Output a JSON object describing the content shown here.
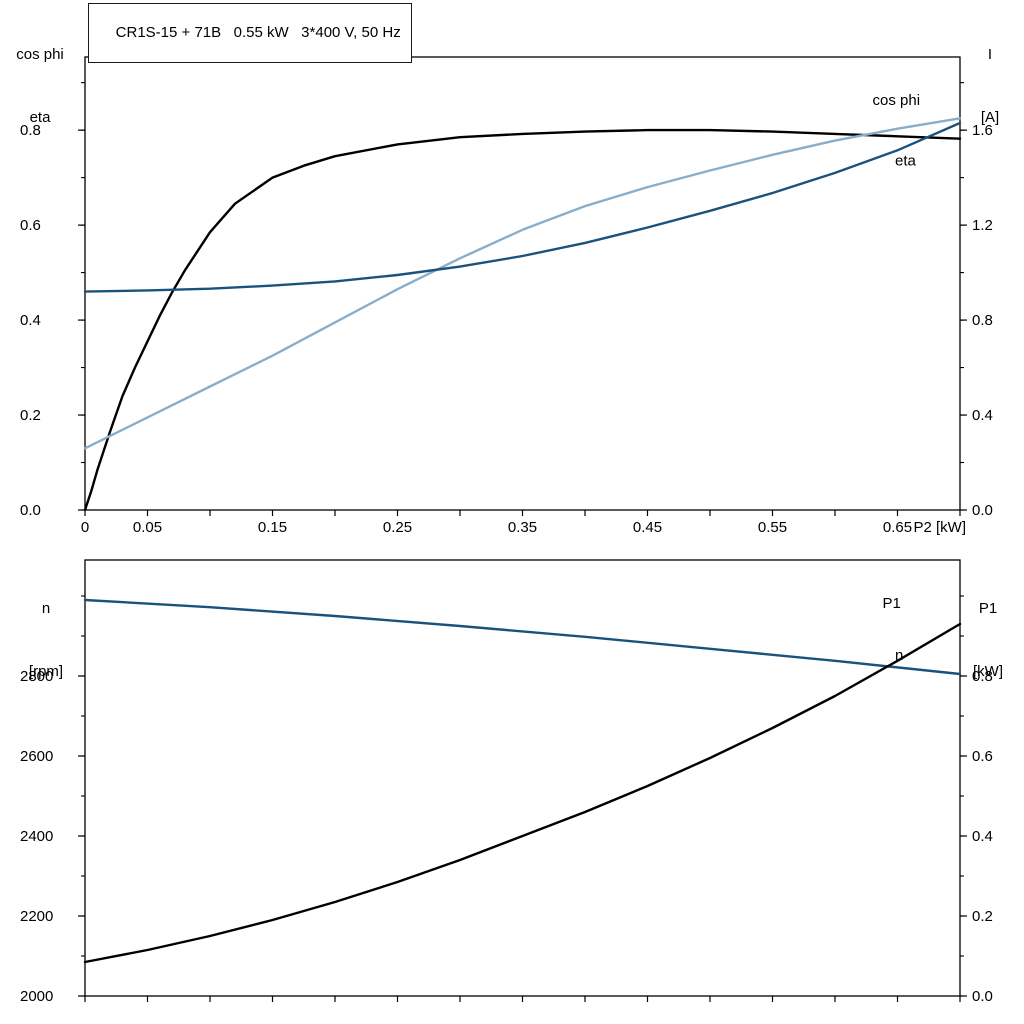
{
  "title_box": "CR1S-15 + 71B   0.55 kW   3*400 V, 50 Hz",
  "colors": {
    "black": "#000000",
    "dark_blue": "#1a527c",
    "light_blue": "#8aaec9",
    "axis": "#000000",
    "background": "#ffffff"
  },
  "chart_data": [
    {
      "type": "line",
      "title": "CR1S-15 + 71B   0.55 kW   3*400 V, 50 Hz",
      "y_left_title": [
        "cos phi",
        "eta"
      ],
      "y_right_title": [
        "I",
        "[A]"
      ],
      "x_title": "P2 [kW]",
      "xlim": [
        0,
        0.7
      ],
      "x_tick_step": 0.05,
      "x_tick_values": [
        0,
        0.05,
        0.15,
        0.25,
        0.35,
        0.45,
        0.55,
        0.65
      ],
      "x_tick_labels": [
        "0",
        "0.05",
        "0.15",
        "0.25",
        "0.35",
        "0.45",
        "0.55",
        "0.65"
      ],
      "ylim_left": [
        0,
        0.954
      ],
      "y_left_tick_values": [
        0.0,
        0.2,
        0.4,
        0.6,
        0.8
      ],
      "y_left_tick_labels": [
        "0.0",
        "0.2",
        "0.4",
        "0.6",
        "0.8"
      ],
      "y_left_minor_step": 0.1,
      "ylim_right": [
        0,
        1.908
      ],
      "y_right_tick_values": [
        0.0,
        0.4,
        0.8,
        1.2,
        1.6
      ],
      "y_right_tick_labels": [
        "0.0",
        "0.4",
        "0.8",
        "1.2",
        "1.6"
      ],
      "y_right_minor_step": 0.2,
      "grid": false,
      "series": [
        {
          "name": "eta",
          "color": "black",
          "axis": "left",
          "x": [
            0,
            0.005,
            0.01,
            0.02,
            0.03,
            0.04,
            0.05,
            0.06,
            0.07,
            0.08,
            0.09,
            0.1,
            0.12,
            0.15,
            0.175,
            0.2,
            0.25,
            0.3,
            0.35,
            0.4,
            0.45,
            0.5,
            0.55,
            0.6,
            0.65,
            0.7
          ],
          "y": [
            0,
            0.04,
            0.085,
            0.165,
            0.24,
            0.3,
            0.355,
            0.41,
            0.46,
            0.505,
            0.545,
            0.585,
            0.645,
            0.7,
            0.725,
            0.745,
            0.77,
            0.785,
            0.792,
            0.797,
            0.8,
            0.8,
            0.797,
            0.792,
            0.787,
            0.782
          ]
        },
        {
          "name": "cos phi",
          "color": "light_blue",
          "axis": "left",
          "x": [
            0,
            0.05,
            0.1,
            0.15,
            0.2,
            0.25,
            0.3,
            0.35,
            0.4,
            0.45,
            0.5,
            0.55,
            0.6,
            0.65,
            0.7
          ],
          "y": [
            0.13,
            0.195,
            0.26,
            0.325,
            0.395,
            0.465,
            0.53,
            0.59,
            0.64,
            0.68,
            0.715,
            0.748,
            0.778,
            0.803,
            0.825
          ]
        },
        {
          "name": "I",
          "color": "dark_blue",
          "axis": "right",
          "x": [
            0,
            0.05,
            0.1,
            0.15,
            0.2,
            0.25,
            0.3,
            0.35,
            0.4,
            0.45,
            0.5,
            0.55,
            0.6,
            0.65,
            0.7
          ],
          "y": [
            0.92,
            0.925,
            0.932,
            0.945,
            0.963,
            0.99,
            1.025,
            1.07,
            1.125,
            1.19,
            1.26,
            1.335,
            1.42,
            1.515,
            1.63
          ]
        }
      ],
      "curve_labels": [
        {
          "text": "cos phi",
          "color": "light_blue",
          "axis": "left",
          "x": 0.63,
          "y": 0.853
        },
        {
          "text": "eta",
          "color": "black",
          "axis": "left",
          "x": 0.648,
          "y": 0.725
        }
      ]
    },
    {
      "type": "line",
      "y_left_title": [
        "n",
        "[rpm]"
      ],
      "y_right_title": [
        "P1",
        "[kW]"
      ],
      "x_title": "",
      "xlim": [
        0,
        0.7
      ],
      "x_tick_step": 0.05,
      "x_tick_values": [],
      "x_tick_labels": [],
      "ylim_left": [
        2000,
        3090
      ],
      "y_left_tick_values": [
        2000,
        2200,
        2400,
        2600,
        2800
      ],
      "y_left_tick_labels": [
        "2000",
        "2200",
        "2400",
        "2600",
        "2800"
      ],
      "y_left_minor_step": 100,
      "ylim_right": [
        0,
        1.09
      ],
      "y_right_tick_values": [
        0.0,
        0.2,
        0.4,
        0.6,
        0.8
      ],
      "y_right_tick_labels": [
        "0.0",
        "0.2",
        "0.4",
        "0.6",
        "0.8"
      ],
      "y_right_minor_step": 0.1,
      "grid": false,
      "series": [
        {
          "name": "n",
          "color": "dark_blue",
          "axis": "left",
          "x": [
            0,
            0.1,
            0.2,
            0.3,
            0.4,
            0.5,
            0.6,
            0.7
          ],
          "y": [
            2990,
            2972,
            2950,
            2925,
            2898,
            2868,
            2838,
            2805
          ]
        },
        {
          "name": "P1",
          "color": "black",
          "axis": "right",
          "x": [
            0,
            0.05,
            0.1,
            0.15,
            0.2,
            0.25,
            0.3,
            0.35,
            0.4,
            0.45,
            0.5,
            0.55,
            0.6,
            0.65,
            0.7
          ],
          "y": [
            0.085,
            0.115,
            0.15,
            0.19,
            0.235,
            0.285,
            0.34,
            0.4,
            0.46,
            0.525,
            0.595,
            0.67,
            0.75,
            0.838,
            0.93
          ]
        }
      ],
      "curve_labels": [
        {
          "text": "P1",
          "color": "black",
          "axis": "right",
          "x": 0.638,
          "y": 0.97
        },
        {
          "text": "n",
          "color": "dark_blue",
          "axis": "left",
          "x": 0.648,
          "y": 2840
        }
      ]
    }
  ]
}
